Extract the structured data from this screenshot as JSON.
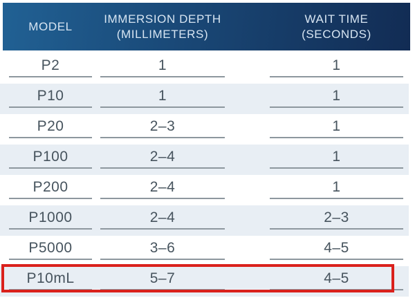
{
  "header": {
    "columns": [
      {
        "line1": "MODEL"
      },
      {
        "line1": "IMMERSION DEPTH",
        "line2": "(MILLIMETERS)"
      },
      {
        "line1": "WAIT TIME",
        "line2": "(SECONDS)"
      }
    ]
  },
  "table": {
    "rows": [
      {
        "model": "P2",
        "immersion_depth": "1",
        "wait_time": "1"
      },
      {
        "model": "P10",
        "immersion_depth": "1",
        "wait_time": "1"
      },
      {
        "model": "P20",
        "immersion_depth": "2–3",
        "wait_time": "1"
      },
      {
        "model": "P100",
        "immersion_depth": "2–4",
        "wait_time": "1"
      },
      {
        "model": "P200",
        "immersion_depth": "2–4",
        "wait_time": "1"
      },
      {
        "model": "P1000",
        "immersion_depth": "2–4",
        "wait_time": "2–3"
      },
      {
        "model": "P5000",
        "immersion_depth": "3–6",
        "wait_time": "4–5"
      },
      {
        "model": "P10mL",
        "immersion_depth": "5–7",
        "wait_time": "4–5"
      }
    ],
    "highlighted_row": "P10mL"
  },
  "colors": {
    "header_gradient_left": "#216194",
    "header_gradient_right": "#122c54",
    "header_text": "#d7e5f2",
    "row_text": "#47545e",
    "underline": "#8d979e",
    "stripe_background": "#e8eef4",
    "highlight_border": "#da211c",
    "background": "#ffffff"
  }
}
